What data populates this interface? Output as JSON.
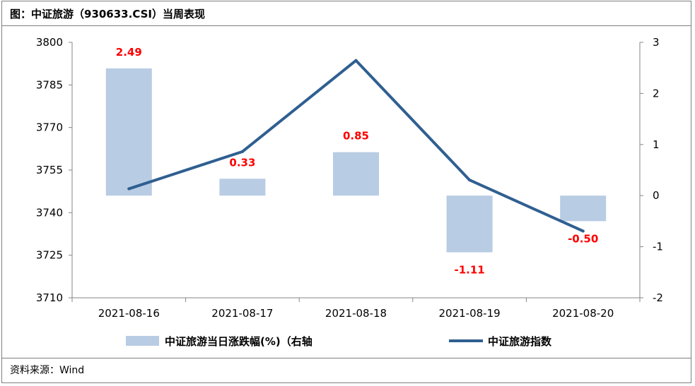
{
  "title": "图：中证旅游（930633.CSI）当周表现",
  "source": "资料来源：Wind",
  "chart_data": {
    "type": "bar+line",
    "categories": [
      "2021-08-16",
      "2021-08-17",
      "2021-08-18",
      "2021-08-19",
      "2021-08-20"
    ],
    "series": [
      {
        "name": "中证旅游当日涨跌幅(%)（右轴",
        "type": "bar",
        "axis": "right",
        "values": [
          2.49,
          0.33,
          0.85,
          -1.11,
          -0.5
        ],
        "labels": [
          "2.49",
          "0.33",
          "0.85",
          "-1.11",
          "-0.50"
        ],
        "color": "#b8cce4"
      },
      {
        "name": "中证旅游指数",
        "type": "line",
        "axis": "left",
        "values": [
          3748.4,
          3761.5,
          3793.6,
          3751.5,
          3733.5
        ],
        "color": "#2f5f91"
      }
    ],
    "left_axis": {
      "min": 3710,
      "max": 3800,
      "ticks": [
        "3710",
        "3725",
        "3740",
        "3755",
        "3770",
        "3785",
        "3800"
      ]
    },
    "right_axis": {
      "min": -2,
      "max": 3,
      "ticks": [
        "-2",
        "-1",
        "0",
        "1",
        "2",
        "3"
      ]
    },
    "data_label_color": "#ff0000",
    "legend_position": "bottom",
    "grid": false
  }
}
